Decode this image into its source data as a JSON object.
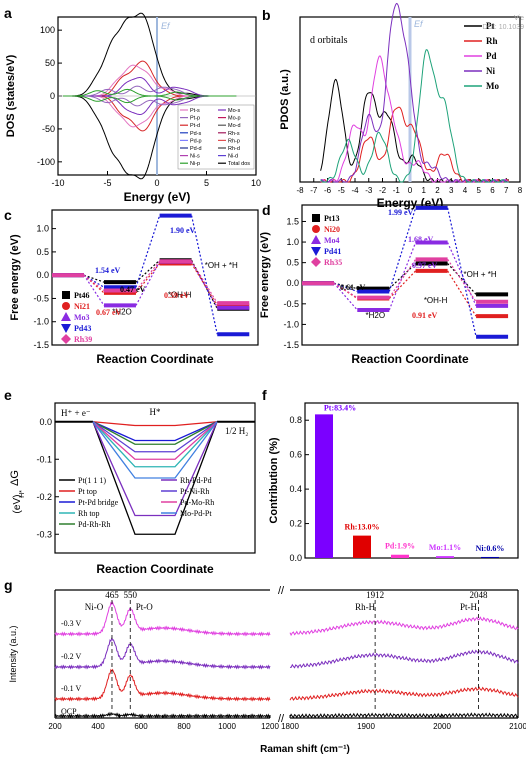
{
  "watermark": [
    "Vie",
    "DOI: 10.1039"
  ],
  "chart_data": [
    {
      "panel": "a",
      "type": "line",
      "xlabel": "Energy (eV)",
      "ylabel": "DOS (states/eV)",
      "xlim": [
        -10,
        10
      ],
      "ylim": [
        -120,
        120
      ],
      "xticks": [
        -10,
        -5,
        0,
        5,
        10
      ],
      "yticks": [
        -100,
        -50,
        0,
        50,
        100
      ],
      "fermi_label": "Ef",
      "legend": [
        "Pt-s",
        "Mo-s",
        "Pt-p",
        "Mo-p",
        "Pt-d",
        "Mo-d",
        "Pd-s",
        "Rh-s",
        "Pd-p",
        "Rh-p",
        "Pd-d",
        "Rh-d",
        "Ni-s",
        "Ni-d",
        "Ni-p",
        "Total dos"
      ],
      "legend_colors": [
        "#e377c2",
        "#7b2fbe",
        "#9467bd",
        "#c2185b",
        "#d62728",
        "#555555",
        "#1f3fbf",
        "#a2195b",
        "#7f7fff",
        "#e05050",
        "#1f2f8f",
        "#444444",
        "#b040b0",
        "#5d3fd3",
        "#2ca02c",
        "#000000"
      ]
    },
    {
      "panel": "b",
      "type": "line",
      "title": "d orbitals",
      "xlabel": "Energy (eV)",
      "ylabel": "PDOS (a.u.)",
      "xlim": [
        -8,
        8
      ],
      "xticks": [
        -8,
        -7,
        -6,
        -5,
        -4,
        -3,
        -2,
        -1,
        0,
        1,
        2,
        3,
        4,
        5,
        6,
        7,
        8
      ],
      "fermi_label": "Ef",
      "series": [
        {
          "name": "Pt",
          "color": "#000000",
          "peaks": [
            [
              -5.4,
              0.62
            ],
            [
              -3.0,
              0.55
            ],
            [
              -1.6,
              0.4
            ],
            [
              0.2,
              0.15
            ]
          ]
        },
        {
          "name": "Rh",
          "color": "#e02020",
          "peaks": [
            [
              -3.0,
              0.28
            ],
            [
              -1.0,
              0.45
            ],
            [
              0.3,
              0.3
            ],
            [
              2.5,
              0.18
            ]
          ]
        },
        {
          "name": "Pd",
          "color": "#e040e0",
          "peaks": [
            [
              -4.0,
              0.35
            ],
            [
              -2.3,
              0.72
            ],
            [
              -1.2,
              0.3
            ],
            [
              0.5,
              0.12
            ]
          ]
        },
        {
          "name": "Ni",
          "color": "#7b2fbe",
          "peaks": [
            [
              -3.0,
              0.4
            ],
            [
              -1.2,
              0.95
            ],
            [
              -0.2,
              0.6
            ],
            [
              1.5,
              0.1
            ]
          ]
        },
        {
          "name": "Mo",
          "color": "#1fa37a",
          "peaks": [
            [
              -4.5,
              0.25
            ],
            [
              -2.2,
              0.3
            ],
            [
              1.2,
              0.78
            ],
            [
              2.5,
              0.45
            ]
          ]
        }
      ]
    },
    {
      "panel": "c",
      "type": "line",
      "xlabel": "Reaction Coordinate",
      "ylabel": "Free energy (eV)",
      "ylim": [
        -1.5,
        1.4
      ],
      "yticks": [
        1.0,
        0.5,
        0.0,
        -0.5,
        -1.0,
        -1.5
      ],
      "states": [
        "",
        "*H2O",
        "*OH-H",
        "*OH + *H"
      ],
      "series": [
        {
          "name": "Pt46",
          "marker": "square",
          "color": "#000000",
          "values": [
            0,
            -0.15,
            0.32,
            -0.72
          ]
        },
        {
          "name": "Ni21",
          "marker": "circle",
          "color": "#e02020",
          "values": [
            0,
            -0.38,
            0.25,
            -0.65
          ]
        },
        {
          "name": "Mo3",
          "marker": "triangle-up",
          "color": "#8a2be2",
          "values": [
            0,
            -0.65,
            0.29,
            -0.7
          ]
        },
        {
          "name": "Pd43",
          "marker": "triangle-down",
          "color": "#1a1ad6",
          "values": [
            0,
            -0.26,
            1.28,
            -1.27
          ]
        },
        {
          "name": "Rh39",
          "marker": "diamond",
          "color": "#e040a0",
          "values": [
            0,
            -0.33,
            0.3,
            -0.6
          ]
        }
      ],
      "annotations": [
        "1.90 eV",
        "1.54 eV",
        "0.47 eV",
        "0.59 eV",
        "0.67 eV"
      ],
      "annotation_colors": [
        "#1a1ad6",
        "#1a1ad6",
        "#000000",
        "#e02020",
        "#e02020"
      ]
    },
    {
      "panel": "d",
      "type": "line",
      "xlabel": "Reaction Coordinate",
      "ylabel": "Free energy (eV)",
      "ylim": [
        -1.5,
        1.9
      ],
      "yticks": [
        1.5,
        1.0,
        0.5,
        0.0,
        -0.5,
        -1.0,
        -1.5
      ],
      "states": [
        "",
        "*H2O",
        "*OH-H",
        "*OH + *H"
      ],
      "series": [
        {
          "name": "Pt13",
          "marker": "square",
          "color": "#000000",
          "values": [
            0,
            -0.13,
            0.48,
            -0.27
          ]
        },
        {
          "name": "Ni20",
          "marker": "circle",
          "color": "#e02020",
          "values": [
            0,
            -0.37,
            0.3,
            -0.8
          ]
        },
        {
          "name": "Mo4",
          "marker": "triangle-up",
          "color": "#8a2be2",
          "values": [
            0,
            -0.65,
            0.99,
            -0.55
          ]
        },
        {
          "name": "Pd41",
          "marker": "triangle-down",
          "color": "#1a1ad6",
          "values": [
            0,
            -0.2,
            1.83,
            -1.3
          ]
        },
        {
          "name": "Rh35",
          "marker": "diamond",
          "color": "#e040a0",
          "values": [
            0,
            -0.35,
            0.58,
            -0.45
          ]
        }
      ],
      "annotations": [
        "1.99 eV",
        "1.68 eV",
        "0.97 eV",
        "0.61 eV",
        "0.91 eV"
      ],
      "annotation_colors": [
        "#1a1ad6",
        "#8a2be2",
        "#8a2be2",
        "#000000",
        "#e02020"
      ]
    },
    {
      "panel": "e",
      "type": "line",
      "xlabel": "Reaction Coordinate",
      "ylim": [
        -0.35,
        0.05
      ],
      "yticks": [
        0.0,
        -0.1,
        -0.2,
        -0.3
      ],
      "labels": {
        "start": "H⁺ + e⁻",
        "middle": "H*",
        "end": "1/2 H₂"
      },
      "series": [
        {
          "name": "Pt(1 1 1)",
          "color": "#000000",
          "value": -0.3
        },
        {
          "name": "Pt top",
          "color": "#e02020",
          "value": -0.01
        },
        {
          "name": "Pt-Pd bridge",
          "color": "#1a1ad6",
          "value": -0.05
        },
        {
          "name": "Rh top",
          "color": "#2fb5b5",
          "value": -0.12
        },
        {
          "name": "Pd-Rh-Rh",
          "color": "#2f7f2f",
          "value": -0.06
        },
        {
          "name": "Rh-Pd-Pd",
          "color": "#7b2fbe",
          "value": -0.25
        },
        {
          "name": "Pt-Ni-Rh",
          "color": "#5d3fd3",
          "value": -0.08
        },
        {
          "name": "Pd-Mo-Rh",
          "color": "#e040a0",
          "value": -0.1
        },
        {
          "name": "Mo-Pd-Pt",
          "color": "#4080e0",
          "value": -0.15
        }
      ]
    },
    {
      "panel": "f",
      "type": "bar",
      "ylabel": "Contribution (%)",
      "ylim": [
        0,
        0.9
      ],
      "yticks": [
        0.0,
        0.2,
        0.4,
        0.6,
        0.8
      ],
      "categories": [
        "Pt",
        "Rh",
        "Pd",
        "Mo",
        "Ni"
      ],
      "values": [
        0.834,
        0.13,
        0.019,
        0.011,
        0.006
      ],
      "labels": [
        "Pt:83.4%",
        "Rh:13.0%",
        "Pd:1.9%",
        "Mo:1.1%",
        "Ni:0.6%"
      ],
      "colors": [
        "#7b00ff",
        "#e00000",
        "#ff33cc",
        "#cc33ff",
        "#0000aa"
      ]
    },
    {
      "panel": "g",
      "type": "line",
      "xlabel": "Raman shift (cm⁻¹)",
      "ylabel": "Intensity (a.u.)",
      "xticks_left": [
        200,
        300,
        400,
        500,
        600,
        700,
        800,
        900,
        1000,
        1100,
        1200
      ],
      "xticks_right": [
        1800,
        1900,
        2000,
        2100
      ],
      "peaks": [
        {
          "label": "465",
          "name": "Ni-O",
          "x": 465
        },
        {
          "label": "550",
          "name": "Pt-O",
          "x": 550
        },
        {
          "label": "1912",
          "name": "Rh-H",
          "x": 1912
        },
        {
          "label": "2048",
          "name": "Pt-H",
          "x": 2048
        }
      ],
      "series": [
        {
          "name": "-0.3 V",
          "color": "#e040e0"
        },
        {
          "name": "-0.2 V",
          "color": "#7b2fbe"
        },
        {
          "name": "-0.1 V",
          "color": "#e02020"
        },
        {
          "name": "OCP",
          "color": "#000000"
        }
      ]
    }
  ]
}
